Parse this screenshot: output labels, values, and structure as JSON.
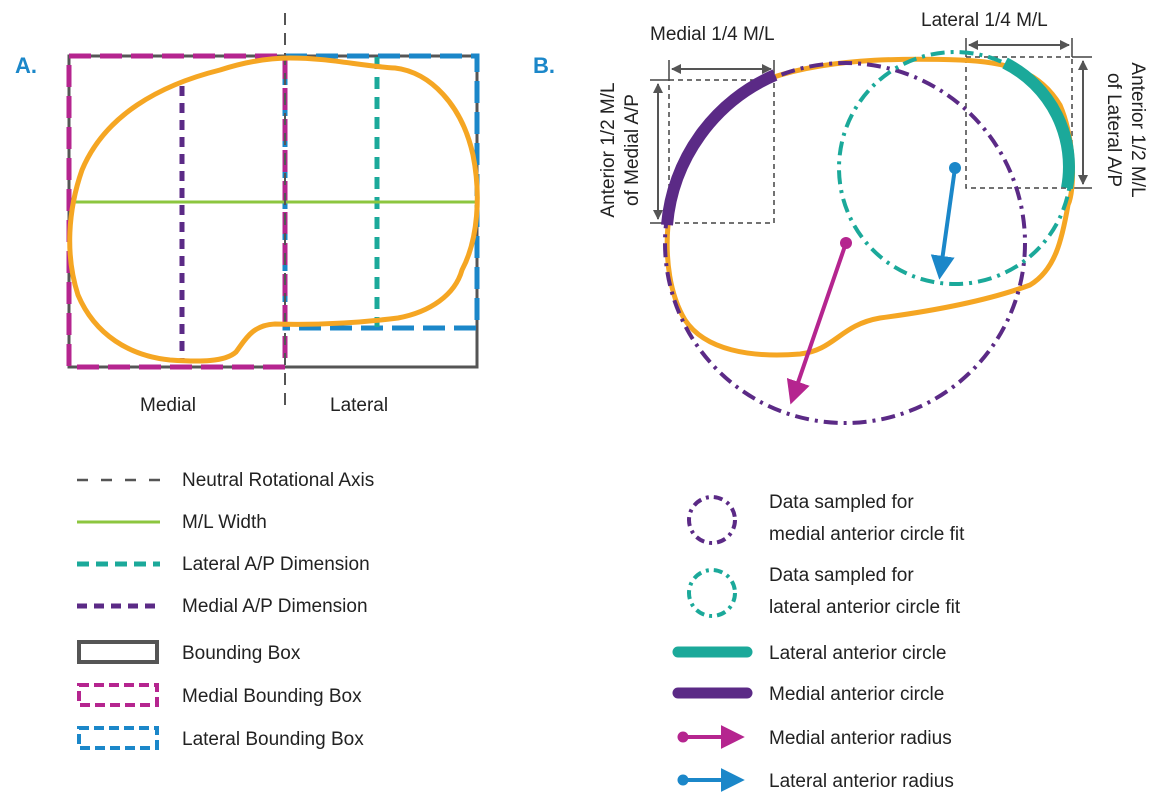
{
  "panel_a": {
    "letter": "A.",
    "label_medial": "Medial",
    "label_lateral": "Lateral"
  },
  "panel_b": {
    "letter": "B.",
    "label_medial_quarter": "Medial 1/4 M/L",
    "label_lateral_quarter": "Lateral 1/4 M/L",
    "label_left_line1": "Anterior 1/2 M/L",
    "label_left_line2": "of Medial A/P",
    "label_right_line1": "Anterior 1/2 M/L",
    "label_right_line2": "of Lateral A/P"
  },
  "legend_a": [
    {
      "text": "Neutral Rotational Axis",
      "icon": "gray-dashed-line-icon"
    },
    {
      "text": "M/L Width",
      "icon": "green-line-icon"
    },
    {
      "text": "Lateral A/P Dimension",
      "icon": "teal-dashed-line-icon"
    },
    {
      "text": "Medial A/P Dimension",
      "icon": "purple-dashed-line-icon"
    },
    {
      "text": "Bounding Box",
      "icon": "gray-box-icon"
    },
    {
      "text": "Medial Bounding Box",
      "icon": "magenta-dashed-box-icon"
    },
    {
      "text": "Lateral Bounding Box",
      "icon": "blue-dashed-box-icon"
    }
  ],
  "legend_b": [
    {
      "line1": "Data sampled  for",
      "line2": "medial anterior circle fit",
      "icon": "purple-dashdot-circle-icon"
    },
    {
      "line1": "Data sampled  for",
      "line2": "lateral anterior circle fit",
      "icon": "teal-dashdot-circle-icon"
    },
    {
      "text": "Lateral anterior circle",
      "icon": "teal-thick-line-icon"
    },
    {
      "text": "Medial anterior circle",
      "icon": "purple-thick-line-icon"
    },
    {
      "text": "Medial anterior radius",
      "icon": "magenta-arrow-icon"
    },
    {
      "text": "Lateral anterior radius",
      "icon": "blue-arrow-icon"
    }
  ],
  "colors": {
    "outline": "#F5A623",
    "green": "#8CC63F",
    "teal": "#1BA99A",
    "purple": "#5B2A86",
    "magenta": "#B5258F",
    "blue": "#1B87C9",
    "gray": "#555555"
  }
}
